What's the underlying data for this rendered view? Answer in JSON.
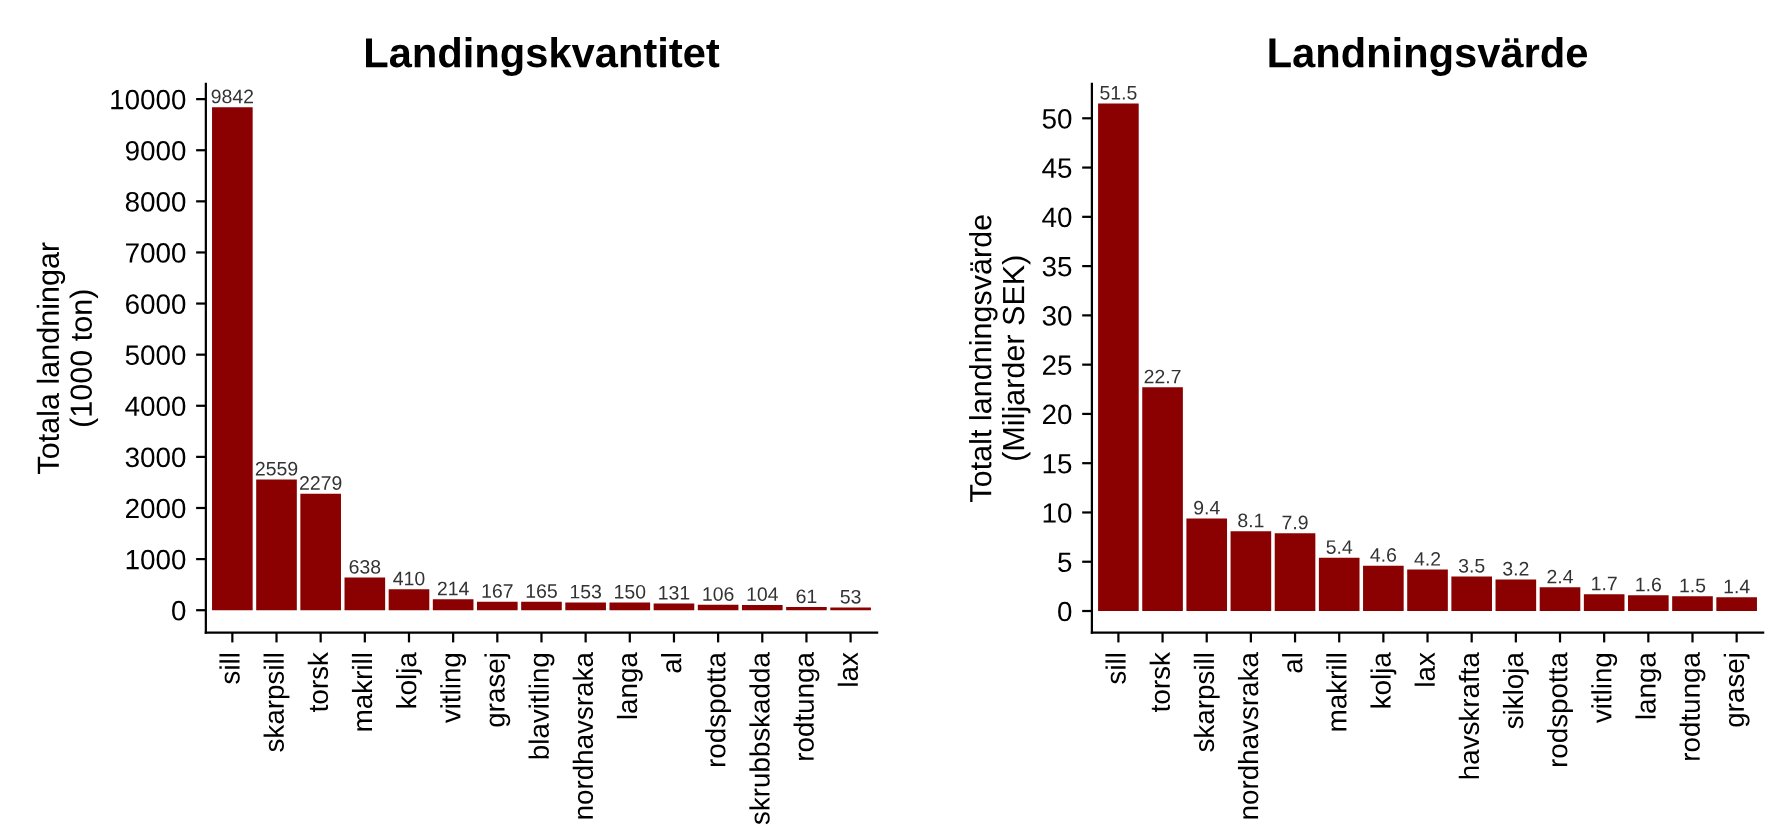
{
  "chart_data": [
    {
      "type": "bar",
      "title": "Landingskvantitet",
      "ylabel": "Totala landningar\n(1000 ton)",
      "categories": [
        "sill",
        "skarpsill",
        "torsk",
        "makrill",
        "kolja",
        "vitling",
        "grasej",
        "blavitling",
        "nordhavsraka",
        "langa",
        "al",
        "rodspotta",
        "skrubbskadda",
        "rodtunga",
        "lax"
      ],
      "series": [
        {
          "color": "#8b0000",
          "values": [
            9842,
            2559,
            2279,
            638,
            410,
            214,
            167,
            165,
            153,
            150,
            131,
            106,
            104,
            61,
            53
          ]
        }
      ],
      "ylim": [
        -440,
        10300
      ],
      "yticks": [
        0,
        1000,
        2000,
        3000,
        4000,
        5000,
        6000,
        7000,
        8000,
        9000,
        10000
      ],
      "data_labels": true,
      "grid": false,
      "legend": false
    },
    {
      "type": "bar",
      "title": "Landningsvärde",
      "ylabel": "Totalt landningsvärde\n(Miljarder SEK)",
      "categories": [
        "sill",
        "torsk",
        "skarpsill",
        "nordhavsraka",
        "al",
        "makrill",
        "kolja",
        "lax",
        "havskrafta",
        "sikloja",
        "rodspotta",
        "vitling",
        "langa",
        "rodtunga",
        "grasej"
      ],
      "series": [
        {
          "color": "#8b0000",
          "values": [
            51.5,
            22.7,
            9.4,
            8.1,
            7.9,
            5.4,
            4.6,
            4.2,
            3.5,
            3.2,
            2.4,
            1.7,
            1.6,
            1.5,
            1.4
          ]
        }
      ],
      "ylim": [
        -2.2,
        53.5
      ],
      "yticks": [
        0,
        5,
        10,
        15,
        20,
        25,
        30,
        35,
        40,
        45,
        50
      ],
      "data_labels": true,
      "grid": false,
      "legend": false
    }
  ]
}
